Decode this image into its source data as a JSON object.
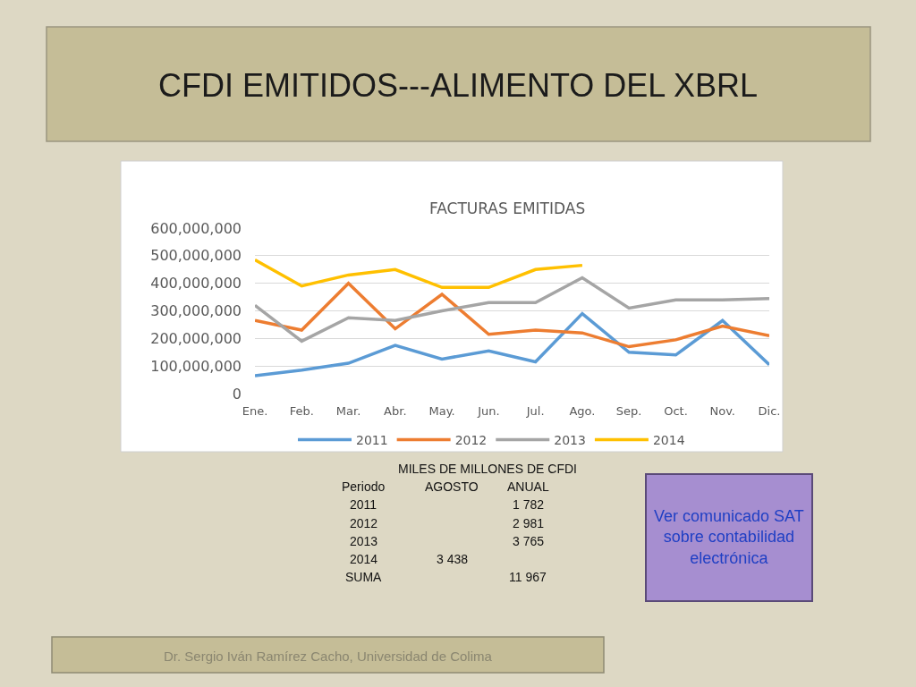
{
  "chart_data": {
    "type": "line",
    "title": "CFDI EMITIDOS---ALIMENTO DEL XBRL",
    "subtitle": "FACTURAS EMITIDAS",
    "categories": [
      "Ene.",
      "Feb.",
      "Mar.",
      "Abr.",
      "May.",
      "Jun.",
      "Jul.",
      "Ago.",
      "Sep.",
      "Oct.",
      "Nov.",
      "Dic."
    ],
    "series": [
      {
        "name": "2011",
        "color": "#5b9bd5",
        "values": [
          65000000,
          85000000,
          110000000,
          175000000,
          125000000,
          155000000,
          115000000,
          290000000,
          150000000,
          140000000,
          265000000,
          105000000
        ]
      },
      {
        "name": "2012",
        "color": "#ed7d31",
        "values": [
          265000000,
          230000000,
          400000000,
          235000000,
          360000000,
          215000000,
          230000000,
          220000000,
          170000000,
          195000000,
          245000000,
          210000000
        ]
      },
      {
        "name": "2013",
        "color": "#a5a5a5",
        "values": [
          320000000,
          190000000,
          275000000,
          265000000,
          300000000,
          330000000,
          330000000,
          420000000,
          310000000,
          340000000,
          340000000,
          345000000
        ]
      },
      {
        "name": "2014",
        "color": "#ffc000",
        "values": [
          485000000,
          390000000,
          430000000,
          450000000,
          385000000,
          385000000,
          450000000,
          465000000,
          null,
          null,
          null,
          null
        ]
      }
    ],
    "ylim": [
      0,
      600000000
    ],
    "yticks": [
      {
        "value": 0,
        "label": "0"
      },
      {
        "value": 100000000,
        "label": "100,000,000"
      },
      {
        "value": 200000000,
        "label": "200,000,000"
      },
      {
        "value": 300000000,
        "label": "300,000,000"
      },
      {
        "value": 400000000,
        "label": "400,000,000"
      },
      {
        "value": 500000000,
        "label": "500,000,000"
      },
      {
        "value": 600000000,
        "label": "600,000,000"
      }
    ],
    "grid": "y",
    "legend": "bottom",
    "marker": "none",
    "line_style": "solid",
    "annotations": [
      "MILES DE MILLONES DE CFDI",
      "Periodo",
      "AGOSTO",
      "ANUAL",
      "2011",
      "1 782",
      "2012",
      "2 981",
      "2013",
      "3 765",
      "2014",
      "3 438",
      "SUMA",
      "11 967",
      "Ver comunicado SAT\nsobre contabilidad\nelectrónica",
      "Dr. Sergio Iván Ramírez Cacho, Universidad de Colima"
    ]
  }
}
